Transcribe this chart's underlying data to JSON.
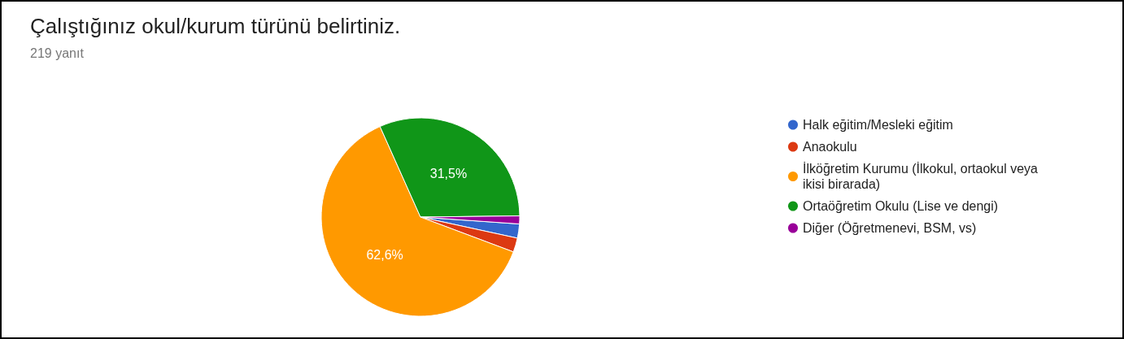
{
  "chart_data": {
    "type": "pie",
    "title": "Çalıştığınız okul/kurum türünü belirtiniz.",
    "subtitle": "219 yanıt",
    "categories": [
      "Halk eğitim/Mesleki eğitim",
      "Anaokulu",
      "İlköğretim Kurumu (İlkokul, ortaokul veya ikisi birarada)",
      "Ortaöğretim Okulu (Lise ve dengi)",
      "Diğer (Öğretmenevi, BSM, vs)"
    ],
    "values": [
      2.3,
      2.3,
      62.6,
      31.5,
      1.3
    ],
    "colors": [
      "#3366cc",
      "#dc3912",
      "#ff9900",
      "#109618",
      "#990099"
    ],
    "value_labels": [
      null,
      null,
      "62,6%",
      "31,5%",
      null
    ],
    "legend": "right"
  }
}
